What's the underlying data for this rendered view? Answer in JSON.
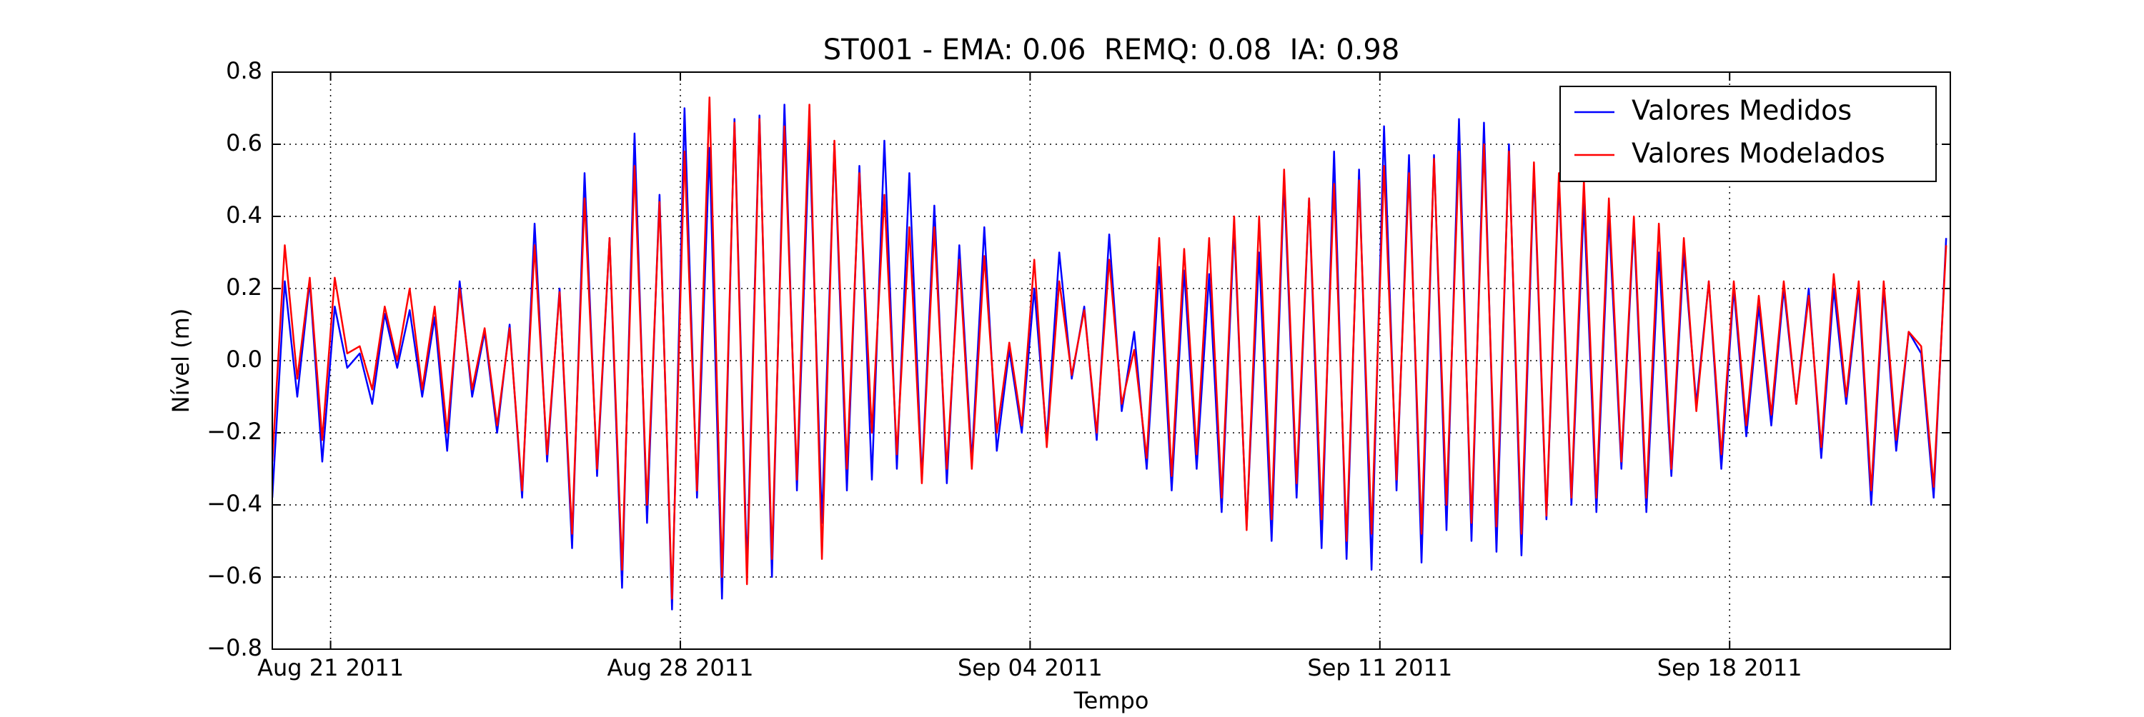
{
  "chart_data": {
    "type": "line",
    "title": "ST001 - EMA: 0.06  REMQ: 0.08  IA: 0.98",
    "x_label": "Tempo",
    "y_label": "Nível (m)",
    "xlim": [
      "2011-08-19T20:00",
      "2011-09-22T10:00"
    ],
    "xticks": [
      {
        "value": "2011-08-21T00:00",
        "label": "Aug 21 2011"
      },
      {
        "value": "2011-08-28T00:00",
        "label": "Aug 28 2011"
      },
      {
        "value": "2011-09-04T00:00",
        "label": "Sep 04 2011"
      },
      {
        "value": "2011-09-11T00:00",
        "label": "Sep 11 2011"
      },
      {
        "value": "2011-09-18T00:00",
        "label": "Sep 18 2011"
      }
    ],
    "ylim": [
      -0.8,
      0.8
    ],
    "yticks": [
      {
        "value": -0.8,
        "label": "−0.8"
      },
      {
        "value": -0.6,
        "label": "−0.6"
      },
      {
        "value": -0.4,
        "label": "−0.4"
      },
      {
        "value": -0.2,
        "label": "−0.2"
      },
      {
        "value": 0,
        "label": "0.0"
      },
      0.2,
      0.4,
      0.6,
      0.8
    ],
    "grid": true,
    "legend_position": "upper right",
    "x": [
      "2011-08-19T20:00",
      "2011-08-20T02:00",
      "2011-08-20T08:00",
      "2011-08-20T14:00",
      "2011-08-20T20:00",
      "2011-08-21T02:00",
      "2011-08-21T08:00",
      "2011-08-21T14:00",
      "2011-08-21T20:00",
      "2011-08-22T02:00",
      "2011-08-22T08:00",
      "2011-08-22T14:00",
      "2011-08-22T20:00",
      "2011-08-23T02:00",
      "2011-08-23T08:00",
      "2011-08-23T14:00",
      "2011-08-23T20:00",
      "2011-08-24T02:00",
      "2011-08-24T08:00",
      "2011-08-24T14:00",
      "2011-08-24T20:00",
      "2011-08-25T02:00",
      "2011-08-25T08:00",
      "2011-08-25T14:00",
      "2011-08-25T20:00",
      "2011-08-26T02:00",
      "2011-08-26T08:00",
      "2011-08-26T14:00",
      "2011-08-26T20:00",
      "2011-08-27T02:00",
      "2011-08-27T08:00",
      "2011-08-27T14:00",
      "2011-08-27T20:00",
      "2011-08-28T02:00",
      "2011-08-28T08:00",
      "2011-08-28T14:00",
      "2011-08-28T20:00",
      "2011-08-29T02:00",
      "2011-08-29T08:00",
      "2011-08-29T14:00",
      "2011-08-29T20:00",
      "2011-08-30T02:00",
      "2011-08-30T08:00",
      "2011-08-30T14:00",
      "2011-08-30T20:00",
      "2011-08-31T02:00",
      "2011-08-31T08:00",
      "2011-08-31T14:00",
      "2011-08-31T20:00",
      "2011-09-01T02:00",
      "2011-09-01T08:00",
      "2011-09-01T14:00",
      "2011-09-01T20:00",
      "2011-09-02T02:00",
      "2011-09-02T08:00",
      "2011-09-02T14:00",
      "2011-09-02T20:00",
      "2011-09-03T02:00",
      "2011-09-03T08:00",
      "2011-09-03T14:00",
      "2011-09-03T20:00",
      "2011-09-04T02:00",
      "2011-09-04T08:00",
      "2011-09-04T14:00",
      "2011-09-04T20:00",
      "2011-09-05T02:00",
      "2011-09-05T08:00",
      "2011-09-05T14:00",
      "2011-09-05T20:00",
      "2011-09-06T02:00",
      "2011-09-06T08:00",
      "2011-09-06T14:00",
      "2011-09-06T20:00",
      "2011-09-07T02:00",
      "2011-09-07T08:00",
      "2011-09-07T14:00",
      "2011-09-07T20:00",
      "2011-09-08T02:00",
      "2011-09-08T08:00",
      "2011-09-08T14:00",
      "2011-09-08T20:00",
      "2011-09-09T02:00",
      "2011-09-09T08:00",
      "2011-09-09T14:00",
      "2011-09-09T20:00",
      "2011-09-10T02:00",
      "2011-09-10T08:00",
      "2011-09-10T14:00",
      "2011-09-10T20:00",
      "2011-09-11T02:00",
      "2011-09-11T08:00",
      "2011-09-11T14:00",
      "2011-09-11T20:00",
      "2011-09-12T02:00",
      "2011-09-12T08:00",
      "2011-09-12T14:00",
      "2011-09-12T20:00",
      "2011-09-13T02:00",
      "2011-09-13T08:00",
      "2011-09-13T14:00",
      "2011-09-13T20:00",
      "2011-09-14T02:00",
      "2011-09-14T08:00",
      "2011-09-14T14:00",
      "2011-09-14T20:00",
      "2011-09-15T02:00",
      "2011-09-15T08:00",
      "2011-09-15T14:00",
      "2011-09-15T20:00",
      "2011-09-16T02:00",
      "2011-09-16T08:00",
      "2011-09-16T14:00",
      "2011-09-16T20:00",
      "2011-09-17T02:00",
      "2011-09-17T08:00",
      "2011-09-17T14:00",
      "2011-09-17T20:00",
      "2011-09-18T02:00",
      "2011-09-18T08:00",
      "2011-09-18T14:00",
      "2011-09-18T20:00",
      "2011-09-19T02:00",
      "2011-09-19T08:00",
      "2011-09-19T14:00",
      "2011-09-19T20:00",
      "2011-09-20T02:00",
      "2011-09-20T08:00",
      "2011-09-20T14:00",
      "2011-09-20T20:00",
      "2011-09-21T02:00",
      "2011-09-21T08:00",
      "2011-09-21T14:00",
      "2011-09-21T20:00",
      "2011-09-22T02:00",
      "2011-09-22T08:00"
    ],
    "series": [
      {
        "name": "Valores Medidos",
        "color": "#0000ff",
        "values": [
          -0.38,
          0.22,
          -0.1,
          0.22,
          -0.28,
          0.15,
          -0.02,
          0.02,
          -0.12,
          0.13,
          -0.02,
          0.14,
          -0.1,
          0.12,
          -0.25,
          0.22,
          -0.1,
          0.08,
          -0.2,
          0.1,
          -0.38,
          0.38,
          -0.28,
          0.2,
          -0.52,
          0.52,
          -0.32,
          0.34,
          -0.63,
          0.63,
          -0.45,
          0.46,
          -0.69,
          0.7,
          -0.38,
          0.59,
          -0.66,
          0.67,
          -0.58,
          0.68,
          -0.6,
          0.71,
          -0.36,
          0.63,
          -0.45,
          0.6,
          -0.36,
          0.54,
          -0.33,
          0.61,
          -0.3,
          0.52,
          -0.33,
          0.43,
          -0.34,
          0.32,
          -0.28,
          0.37,
          -0.25,
          0.03,
          -0.2,
          0.2,
          -0.22,
          0.3,
          -0.05,
          0.15,
          -0.22,
          0.35,
          -0.14,
          0.08,
          -0.3,
          0.26,
          -0.36,
          0.25,
          -0.3,
          0.24,
          -0.42,
          0.37,
          -0.46,
          0.3,
          -0.5,
          0.5,
          -0.38,
          0.45,
          -0.52,
          0.58,
          -0.55,
          0.53,
          -0.58,
          0.65,
          -0.36,
          0.57,
          -0.56,
          0.57,
          -0.47,
          0.67,
          -0.5,
          0.66,
          -0.53,
          0.6,
          -0.54,
          0.53,
          -0.44,
          0.5,
          -0.4,
          0.44,
          -0.42,
          0.4,
          -0.3,
          0.38,
          -0.42,
          0.3,
          -0.32,
          0.3,
          -0.12,
          0.22,
          -0.3,
          0.2,
          -0.21,
          0.15,
          -0.18,
          0.2,
          -0.12,
          0.2,
          -0.27,
          0.2,
          -0.12,
          0.2,
          -0.4,
          0.2,
          -0.25,
          0.08,
          0.02,
          -0.38,
          0.34
        ]
      },
      {
        "name": "Valores Modelados",
        "color": "#ff0000",
        "values": [
          -0.28,
          0.32,
          -0.05,
          0.23,
          -0.22,
          0.23,
          0.02,
          0.04,
          -0.08,
          0.15,
          0.0,
          0.2,
          -0.08,
          0.15,
          -0.2,
          0.2,
          -0.08,
          0.09,
          -0.18,
          0.09,
          -0.36,
          0.32,
          -0.26,
          0.19,
          -0.48,
          0.45,
          -0.3,
          0.34,
          -0.58,
          0.54,
          -0.4,
          0.44,
          -0.66,
          0.58,
          -0.36,
          0.73,
          -0.6,
          0.66,
          -0.62,
          0.67,
          -0.55,
          0.65,
          -0.33,
          0.71,
          -0.55,
          0.61,
          -0.3,
          0.52,
          -0.2,
          0.46,
          -0.26,
          0.37,
          -0.34,
          0.37,
          -0.3,
          0.28,
          -0.3,
          0.29,
          -0.2,
          0.05,
          -0.18,
          0.28,
          -0.24,
          0.22,
          -0.04,
          0.14,
          -0.2,
          0.28,
          -0.12,
          0.03,
          -0.27,
          0.34,
          -0.32,
          0.31,
          -0.26,
          0.34,
          -0.38,
          0.4,
          -0.47,
          0.4,
          -0.44,
          0.53,
          -0.34,
          0.45,
          -0.44,
          0.49,
          -0.5,
          0.5,
          -0.48,
          0.54,
          -0.33,
          0.52,
          -0.48,
          0.56,
          -0.4,
          0.58,
          -0.45,
          0.6,
          -0.46,
          0.58,
          -0.48,
          0.55,
          -0.43,
          0.52,
          -0.38,
          0.5,
          -0.38,
          0.45,
          -0.28,
          0.4,
          -0.38,
          0.38,
          -0.3,
          0.34,
          -0.14,
          0.22,
          -0.26,
          0.22,
          -0.18,
          0.18,
          -0.15,
          0.22,
          -0.12,
          0.18,
          -0.24,
          0.24,
          -0.1,
          0.22,
          -0.36,
          0.22,
          -0.22,
          0.08,
          0.04,
          -0.35,
          0.32
        ]
      }
    ]
  }
}
